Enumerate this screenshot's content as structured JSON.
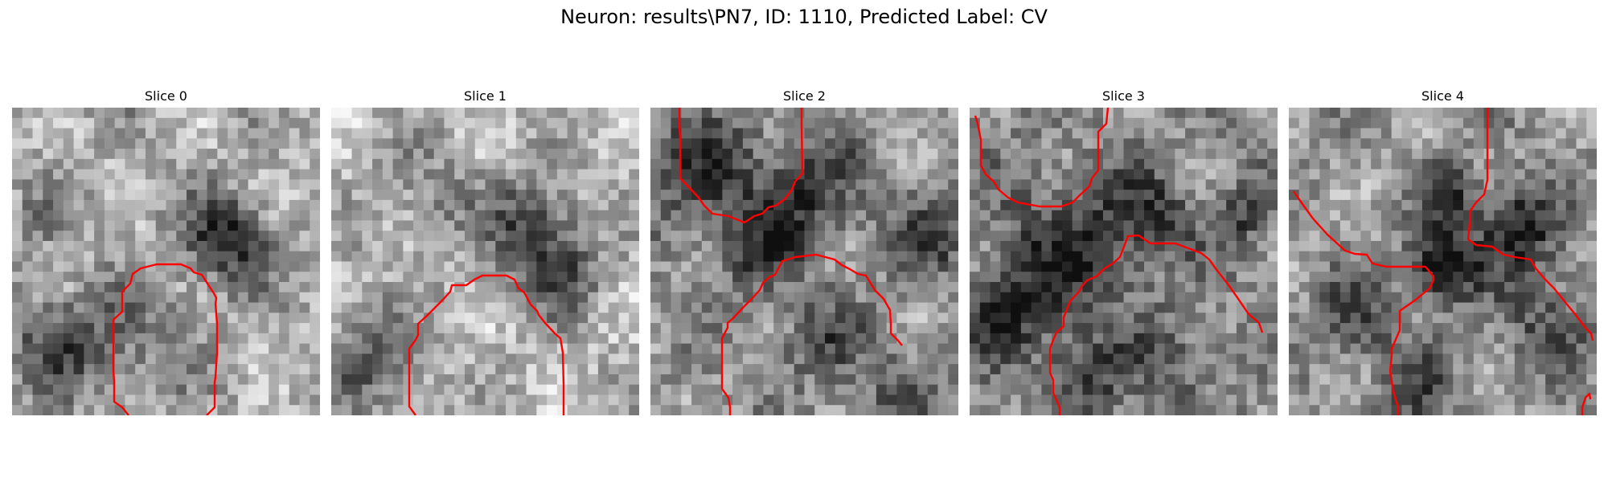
{
  "figure": {
    "title": "Neuron: results\\PN7, ID: 1110, Predicted Label: CV"
  },
  "panels": [
    {
      "title": "Slice 0"
    },
    {
      "title": "Slice 1"
    },
    {
      "title": "Slice 2"
    },
    {
      "title": "Slice 3"
    },
    {
      "title": "Slice 4"
    }
  ],
  "colors": {
    "contour": "#ff0000",
    "background": "#ffffff"
  }
}
